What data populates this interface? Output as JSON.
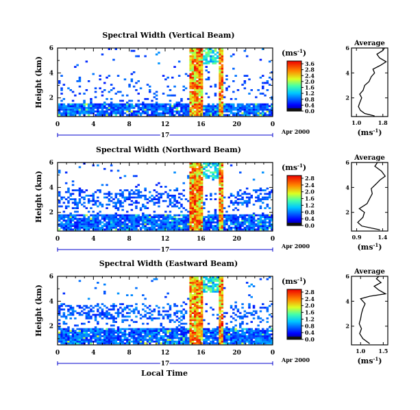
{
  "chart_data": [
    {
      "type": "heatmap",
      "title": "Spectral Width (Vertical Beam)",
      "ylabel": "Height (km)",
      "y_ticks": [
        "2",
        "4",
        "6"
      ],
      "x_ticks": [
        "0",
        "4",
        "8",
        "12",
        "16",
        "20",
        "0"
      ],
      "day_label": "17",
      "date_label": "Apr 2000",
      "ylim": [
        0.5,
        6
      ],
      "xlim": [
        0,
        24
      ],
      "colorbar": {
        "unit_label": "(ms",
        "unit_exp": "-1",
        "unit_close": ")",
        "ticks": [
          "0.0",
          "0.4",
          "0.8",
          "1.2",
          "1.6",
          "2.0",
          "2.4",
          "2.8",
          "3.6"
        ]
      },
      "average": {
        "title": "Average",
        "xlabel": "(ms",
        "xlabel_exp": "-1",
        "xlabel_close": ")",
        "x_ticks": [
          "1.0",
          "1.8"
        ],
        "y_ticks": [
          "2",
          "4",
          "6"
        ],
        "xlim": [
          0.85,
          1.95
        ],
        "profile": [
          {
            "h": 0.55,
            "w": 1.55
          },
          {
            "h": 0.75,
            "w": 1.25
          },
          {
            "h": 1.0,
            "w": 1.12
          },
          {
            "h": 1.3,
            "w": 1.06
          },
          {
            "h": 1.6,
            "w": 1.1
          },
          {
            "h": 2.0,
            "w": 1.16
          },
          {
            "h": 2.3,
            "w": 1.1
          },
          {
            "h": 2.6,
            "w": 1.2
          },
          {
            "h": 3.0,
            "w": 1.25
          },
          {
            "h": 3.3,
            "w": 1.38
          },
          {
            "h": 3.7,
            "w": 1.45
          },
          {
            "h": 4.0,
            "w": 1.55
          },
          {
            "h": 4.3,
            "w": 1.5
          },
          {
            "h": 4.6,
            "w": 1.72
          },
          {
            "h": 4.9,
            "w": 1.9
          },
          {
            "h": 5.2,
            "w": 1.7
          },
          {
            "h": 5.5,
            "w": 1.62
          },
          {
            "h": 5.8,
            "w": 1.8
          },
          {
            "h": 6.0,
            "w": 1.85
          }
        ]
      }
    },
    {
      "type": "heatmap",
      "title": "Spectral Width (Northward Beam)",
      "ylabel": "Height (km)",
      "y_ticks": [
        "2",
        "4",
        "6"
      ],
      "x_ticks": [
        "0",
        "4",
        "8",
        "12",
        "16",
        "20",
        "0"
      ],
      "day_label": "17",
      "date_label": "Apr 2000",
      "ylim": [
        0.5,
        6
      ],
      "xlim": [
        0,
        24
      ],
      "colorbar": {
        "unit_label": "(ms",
        "unit_exp": "-1",
        "unit_close": ")",
        "ticks": [
          "0.0",
          "0.4",
          "0.8",
          "1.2",
          "1.6",
          "2.0",
          "2.4",
          "2.8"
        ]
      },
      "average": {
        "title": "Average",
        "xlabel": "(ms",
        "xlabel_exp": "-1",
        "xlabel_close": ")",
        "x_ticks": [
          "0.9",
          "1.4"
        ],
        "y_ticks": [
          "2",
          "4",
          "6"
        ],
        "xlim": [
          0.8,
          1.5
        ],
        "profile": [
          {
            "h": 0.6,
            "w": 1.35
          },
          {
            "h": 0.9,
            "w": 1.0
          },
          {
            "h": 1.2,
            "w": 0.92
          },
          {
            "h": 1.6,
            "w": 1.02
          },
          {
            "h": 2.0,
            "w": 1.05
          },
          {
            "h": 2.3,
            "w": 0.95
          },
          {
            "h": 2.7,
            "w": 1.1
          },
          {
            "h": 3.1,
            "w": 1.15
          },
          {
            "h": 3.5,
            "w": 1.2
          },
          {
            "h": 3.9,
            "w": 1.18
          },
          {
            "h": 4.3,
            "w": 1.28
          },
          {
            "h": 4.6,
            "w": 1.35
          },
          {
            "h": 4.9,
            "w": 1.45
          },
          {
            "h": 5.3,
            "w": 1.38
          },
          {
            "h": 5.7,
            "w": 1.25
          },
          {
            "h": 6.0,
            "w": 1.3
          }
        ]
      }
    },
    {
      "type": "heatmap",
      "title": "Spectral Width (Eastward Beam)",
      "ylabel": "Height (km)",
      "y_ticks": [
        "2",
        "4",
        "6"
      ],
      "x_ticks": [
        "0",
        "4",
        "8",
        "12",
        "16",
        "20",
        "0"
      ],
      "day_label": "17",
      "date_label": "Apr 2000",
      "xlabel": "Local Time",
      "ylim": [
        0.5,
        6
      ],
      "xlim": [
        0,
        24
      ],
      "colorbar": {
        "unit_label": "(ms",
        "unit_exp": "-1",
        "unit_close": ")",
        "ticks": [
          "0.0",
          "0.4",
          "0.8",
          "1.2",
          "1.6",
          "2.0",
          "2.4",
          "2.8"
        ]
      },
      "average": {
        "title": "Average",
        "xlabel": "(ms",
        "xlabel_exp": "-1",
        "xlabel_close": ")",
        "x_ticks": [
          "1.0",
          "1.5"
        ],
        "y_ticks": [
          "2",
          "4",
          "6"
        ],
        "xlim": [
          0.8,
          1.6
        ],
        "profile": [
          {
            "h": 0.6,
            "w": 1.2
          },
          {
            "h": 1.0,
            "w": 1.05
          },
          {
            "h": 1.4,
            "w": 0.98
          },
          {
            "h": 1.8,
            "w": 1.02
          },
          {
            "h": 2.2,
            "w": 0.97
          },
          {
            "h": 2.6,
            "w": 1.0
          },
          {
            "h": 3.0,
            "w": 1.02
          },
          {
            "h": 3.4,
            "w": 1.05
          },
          {
            "h": 3.8,
            "w": 1.1
          },
          {
            "h": 4.2,
            "w": 1.0
          },
          {
            "h": 4.4,
            "w": 1.2
          },
          {
            "h": 4.6,
            "w": 1.55
          },
          {
            "h": 4.9,
            "w": 1.4
          },
          {
            "h": 5.2,
            "w": 1.3
          },
          {
            "h": 5.5,
            "w": 1.45
          },
          {
            "h": 5.8,
            "w": 1.35
          },
          {
            "h": 6.0,
            "w": 1.4
          }
        ]
      }
    }
  ]
}
